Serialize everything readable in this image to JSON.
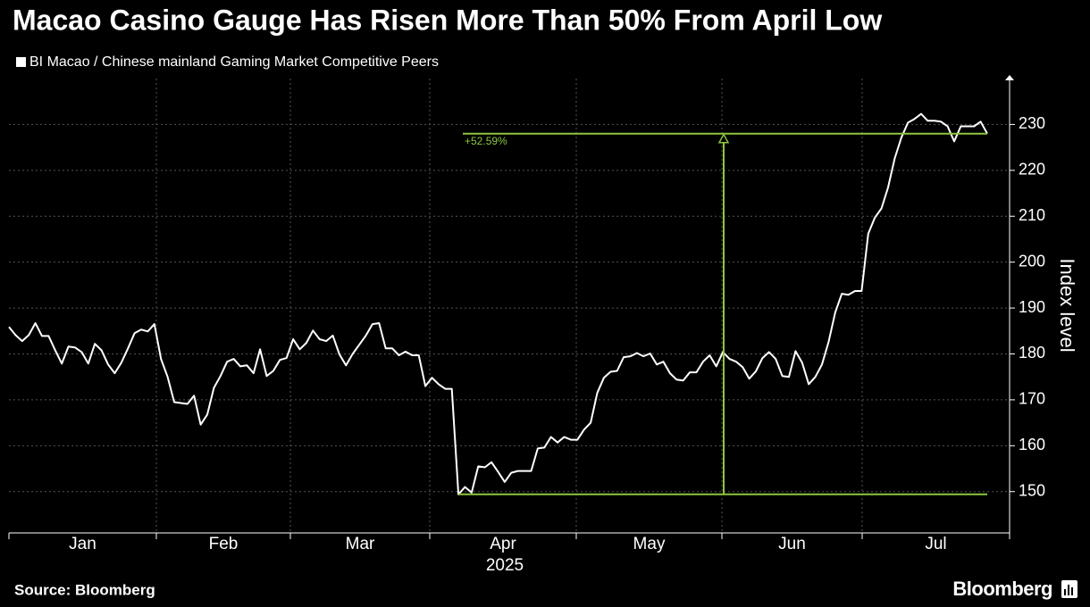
{
  "chart_data": {
    "type": "line",
    "title": "Macao Casino Gauge Has Risen More Than 50% From April Low",
    "series": [
      {
        "name": "BI Macao / Chinese mainland Gaming Market Competitive Peers",
        "color": "#ffffff",
        "values": [
          185.9,
          184.1,
          182.8,
          184.1,
          186.7,
          183.9,
          183.9,
          180.8,
          177.9,
          181.6,
          181.4,
          180.4,
          177.9,
          182.2,
          180.8,
          177.7,
          175.8,
          178.1,
          181.2,
          184.5,
          185.3,
          184.9,
          186.5,
          178.9,
          175.0,
          169.5,
          169.3,
          169.1,
          170.9,
          164.6,
          166.8,
          172.6,
          175.2,
          178.3,
          178.9,
          177.3,
          177.5,
          175.8,
          181.0,
          175.2,
          176.3,
          178.7,
          179.1,
          183.2,
          181.0,
          182.4,
          185.1,
          183.2,
          182.8,
          184.0,
          179.9,
          177.5,
          180.0,
          182.0,
          184.0,
          186.5,
          186.7,
          181.2,
          181.2,
          179.7,
          180.5,
          179.7,
          179.7,
          173.0,
          174.8,
          173.4,
          172.4,
          172.4,
          149.4,
          151.0,
          149.8,
          155.5,
          155.3,
          156.4,
          154.3,
          152.1,
          154.1,
          154.5,
          154.5,
          154.5,
          159.4,
          159.6,
          161.9,
          160.7,
          161.9,
          161.3,
          161.3,
          163.5,
          165.0,
          171.5,
          174.8,
          176.1,
          176.3,
          179.3,
          179.5,
          180.2,
          179.5,
          180.1,
          177.7,
          178.3,
          175.8,
          174.4,
          174.2,
          176.0,
          176.0,
          178.3,
          179.7,
          177.3,
          180.4,
          178.9,
          178.3,
          177.1,
          174.6,
          176.2,
          179.1,
          180.4,
          178.9,
          175.2,
          175.0,
          180.6,
          178.1,
          173.4,
          175.0,
          177.7,
          182.6,
          189.0,
          193.1,
          192.9,
          193.7,
          193.7,
          206.2,
          209.7,
          211.7,
          216.3,
          222.6,
          227.1,
          230.4,
          231.2,
          232.3,
          230.8,
          230.8,
          230.6,
          229.6,
          226.3,
          229.6,
          229.6,
          229.6,
          230.6,
          228.0
        ]
      }
    ],
    "ylim": [
      141,
      240
    ],
    "yticks": [
      150,
      160,
      170,
      180,
      190,
      200,
      210,
      220,
      230
    ],
    "y_label": "Index level",
    "x_labels": [
      "Jan",
      "Feb",
      "Mar",
      "Apr",
      "May",
      "Jun",
      "Jul"
    ],
    "x_sublabel": "2025",
    "grid": true,
    "annotation": {
      "label": "+52.59%",
      "low": 149.4,
      "high": 228.0,
      "color": "#8dc63f"
    },
    "source": "Source: Bloomberg",
    "brand": "Bloomberg"
  }
}
